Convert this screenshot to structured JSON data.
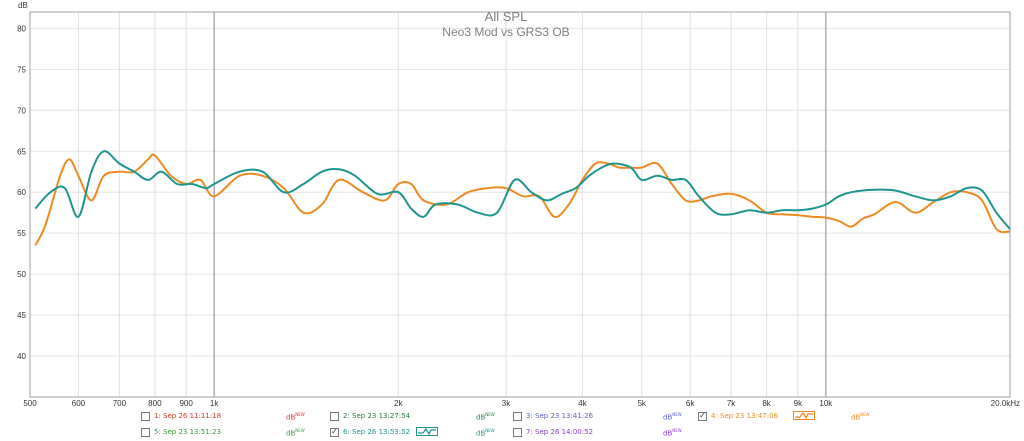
{
  "chart_data": {
    "type": "line",
    "title": "All SPL",
    "subtitle": "Neo3 Mod vs GRS3 OB",
    "ylabel": "dB",
    "xscale": "log",
    "xlim": [
      500,
      20000
    ],
    "ylim": [
      35,
      82
    ],
    "grid": true,
    "y_ticks": [
      40,
      45,
      50,
      55,
      60,
      65,
      70,
      75,
      80
    ],
    "x_ticks": [
      {
        "value": 500,
        "label": "500"
      },
      {
        "value": 600,
        "label": "600"
      },
      {
        "value": 700,
        "label": "700"
      },
      {
        "value": 800,
        "label": "800"
      },
      {
        "value": 900,
        "label": "900"
      },
      {
        "value": 1000,
        "label": "1k"
      },
      {
        "value": 2000,
        "label": "2k"
      },
      {
        "value": 3000,
        "label": "3k"
      },
      {
        "value": 4000,
        "label": "4k"
      },
      {
        "value": 5000,
        "label": "5k"
      },
      {
        "value": 6000,
        "label": "6k"
      },
      {
        "value": 7000,
        "label": "7k"
      },
      {
        "value": 8000,
        "label": "8k"
      },
      {
        "value": 9000,
        "label": "9k"
      },
      {
        "value": 10000,
        "label": "10k"
      },
      {
        "value": 20000,
        "label": "20.0kHz"
      }
    ],
    "series": [
      {
        "name": "4: Sep 23 13:47:06",
        "color": "#ee8a22",
        "x": [
          510,
          530,
          560,
          580,
          600,
          630,
          660,
          700,
          740,
          780,
          800,
          850,
          900,
          950,
          1000,
          1100,
          1200,
          1300,
          1400,
          1500,
          1600,
          1750,
          1900,
          2000,
          2100,
          2200,
          2400,
          2600,
          2800,
          3000,
          3200,
          3400,
          3600,
          3800,
          4000,
          4200,
          4400,
          4600,
          4800,
          5000,
          5300,
          5600,
          5900,
          6200,
          6500,
          7000,
          7500,
          8000,
          8500,
          9000,
          9500,
          10000,
          10500,
          11000,
          11500,
          12000,
          13000,
          14000,
          15000,
          16000,
          17000,
          18000,
          19000,
          20000
        ],
        "y": [
          53.5,
          56.0,
          62.0,
          64.0,
          62.0,
          59.0,
          62.0,
          62.5,
          62.5,
          64.0,
          64.5,
          62.0,
          61.0,
          61.5,
          59.5,
          62.0,
          62.0,
          60.5,
          57.5,
          58.5,
          61.5,
          60.0,
          59.0,
          61.0,
          61.0,
          59.0,
          58.5,
          60.0,
          60.5,
          60.5,
          59.5,
          59.5,
          57.0,
          58.5,
          61.5,
          63.5,
          63.5,
          63.0,
          63.0,
          63.0,
          63.5,
          61.0,
          59.0,
          59.0,
          59.5,
          59.8,
          59.0,
          57.5,
          57.3,
          57.2,
          57.0,
          56.9,
          56.5,
          55.8,
          56.8,
          57.3,
          58.8,
          57.5,
          58.8,
          60.0,
          60.0,
          59.0,
          55.5,
          55.2
        ]
      },
      {
        "name": "6: Sep 26 13:53:52",
        "color": "#1f9590",
        "x": [
          510,
          540,
          570,
          600,
          630,
          660,
          700,
          740,
          780,
          820,
          870,
          920,
          970,
          1000,
          1100,
          1200,
          1300,
          1400,
          1500,
          1600,
          1700,
          1850,
          2000,
          2100,
          2200,
          2300,
          2500,
          2700,
          2900,
          3100,
          3300,
          3500,
          3700,
          3900,
          4100,
          4300,
          4500,
          4800,
          5000,
          5300,
          5600,
          5900,
          6200,
          6600,
          7000,
          7500,
          8000,
          8500,
          9000,
          9500,
          10000,
          10500,
          11000,
          12000,
          13000,
          14000,
          15000,
          16000,
          17000,
          18000,
          19000,
          20000
        ],
        "y": [
          58.0,
          60.0,
          60.5,
          57.0,
          62.5,
          65.0,
          63.5,
          62.5,
          61.5,
          62.5,
          61.0,
          61.0,
          60.5,
          61.0,
          62.5,
          62.5,
          60.0,
          61.0,
          62.5,
          62.8,
          62.0,
          59.8,
          60.0,
          58.0,
          57.0,
          58.5,
          58.5,
          57.5,
          57.5,
          61.5,
          60.0,
          59.0,
          59.8,
          60.5,
          62.0,
          63.0,
          63.5,
          63.0,
          61.5,
          62.0,
          61.5,
          61.5,
          59.5,
          57.5,
          57.3,
          57.8,
          57.5,
          57.8,
          57.8,
          58.0,
          58.5,
          59.5,
          60.0,
          60.3,
          60.2,
          59.5,
          59.0,
          59.5,
          60.5,
          60.2,
          57.5,
          55.5
        ]
      }
    ]
  },
  "legend": [
    {
      "id": "1",
      "label": "1: Sep 26 11:11:18",
      "checked": false,
      "color": "#d9342b",
      "db": "dB",
      "db_sup": "NEW",
      "db_color": "#d9342b",
      "swatch": false
    },
    {
      "id": "2",
      "label": "2: Sep 23 13:27:54",
      "checked": false,
      "color": "#2a7d3a",
      "db": "dB",
      "db_sup": "NEW",
      "db_color": "#2a7d3a",
      "swatch": false
    },
    {
      "id": "3",
      "label": "3: Sep 23 13:41:26",
      "checked": false,
      "color": "#5b5fc7",
      "db": "dB",
      "db_sup": "NEW",
      "db_color": "#5b5fc7",
      "swatch": false
    },
    {
      "id": "4",
      "label": "4: Sep 23 13:47:06",
      "checked": true,
      "color": "#ee8a22",
      "db": "dB",
      "db_sup": "NEW",
      "db_color": "#ee8a22",
      "swatch": true
    },
    {
      "id": "5",
      "label": "5: Sep 23 13:51:23",
      "checked": false,
      "color": "#3a9a3a",
      "db": "dB",
      "db_sup": "NEW",
      "db_color": "#3a9a3a",
      "swatch": false
    },
    {
      "id": "6",
      "label": "6: Sep 26 13:53:52",
      "checked": true,
      "color": "#1f9590",
      "db": "dB",
      "db_sup": "NEW",
      "db_color": "#1f9590",
      "swatch": true
    },
    {
      "id": "7",
      "label": "7: Sep 26 14:00:52",
      "checked": false,
      "color": "#8a3ad0",
      "db": "dB",
      "db_sup": "NEW",
      "db_color": "#8a3ad0",
      "swatch": false
    }
  ]
}
